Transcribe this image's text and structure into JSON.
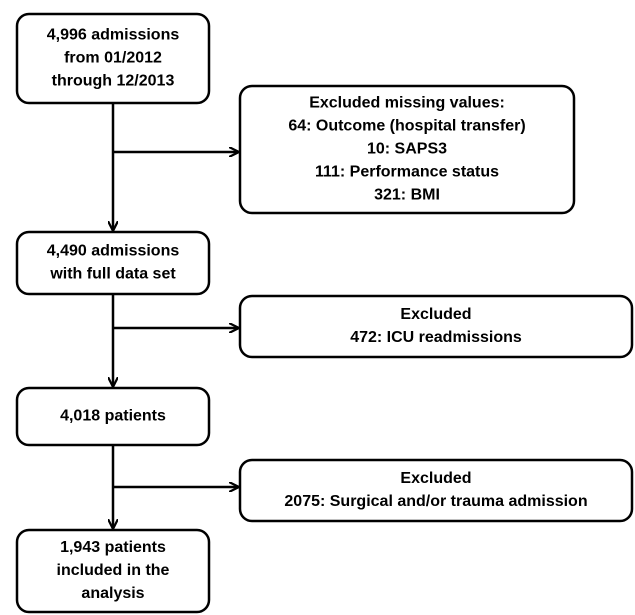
{
  "nodes": [
    {
      "lines": [
        "4,996 admissions",
        "from 01/2012",
        "through 12/2013"
      ]
    },
    {
      "lines": [
        "4,490 admissions",
        "with full data set"
      ]
    },
    {
      "lines": [
        "4,018 patients"
      ]
    },
    {
      "lines": [
        "1,943 patients",
        "included in the",
        "analysis"
      ]
    }
  ],
  "exclusions": [
    {
      "lines": [
        "Excluded missing values:",
        "64: Outcome (hospital transfer)",
        "10: SAPS3",
        "111: Performance status",
        "321: BMI"
      ]
    },
    {
      "lines": [
        "Excluded",
        "472: ICU readmissions"
      ]
    },
    {
      "lines": [
        "Excluded",
        "2075: Surgical and/or trauma admission"
      ]
    }
  ]
}
